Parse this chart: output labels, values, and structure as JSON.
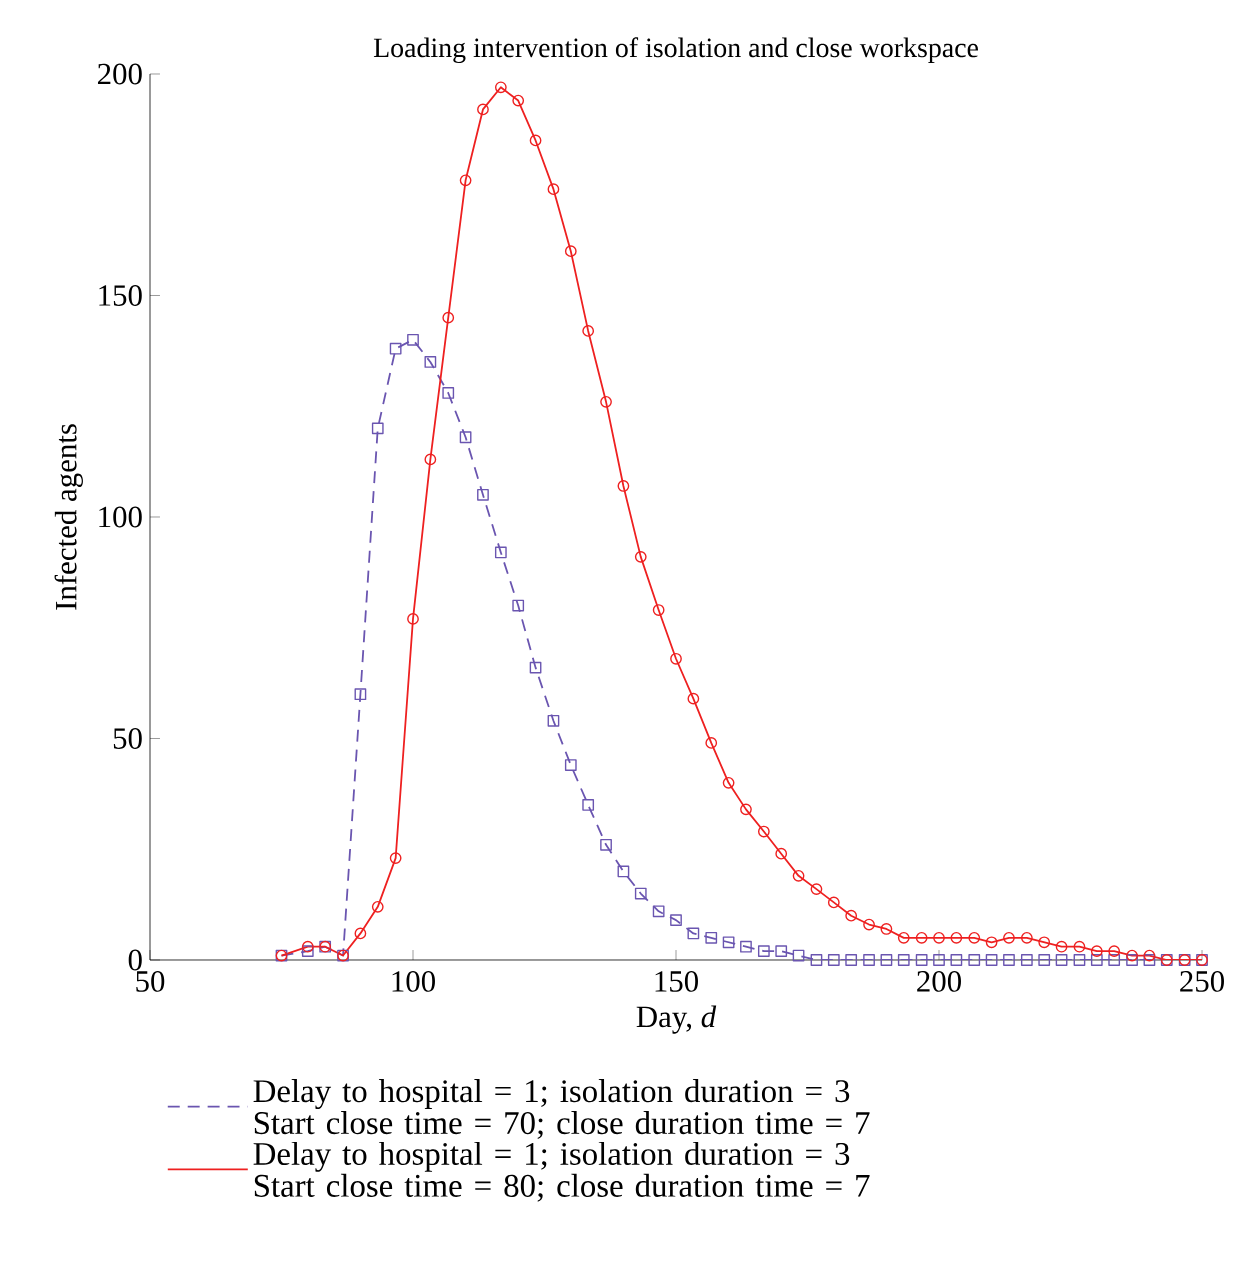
{
  "chart_data": {
    "type": "line",
    "title": "Loading intervention of isolation and close workspace",
    "xlabel": "Day, *d*",
    "ylabel": "Infected agents",
    "xlim": [
      50,
      250
    ],
    "ylim": [
      0,
      200
    ],
    "xticks": [
      50,
      100,
      150,
      200,
      250
    ],
    "yticks": [
      0,
      50,
      100,
      150,
      200
    ],
    "grid": false,
    "legend": "bottom",
    "x": [
      75,
      80,
      83.3,
      86.7,
      90,
      93.3,
      96.7,
      100,
      103.3,
      106.7,
      110,
      113.3,
      116.7,
      120,
      123.3,
      126.7,
      130,
      133.3,
      136.7,
      140,
      143.3,
      146.7,
      150,
      153.3,
      156.7,
      160,
      163.3,
      166.7,
      170,
      173.3,
      176.7,
      180,
      183.3,
      186.7,
      190,
      193.3,
      196.7,
      200,
      203.3,
      206.7,
      210,
      213.3,
      216.7,
      220,
      223.3,
      226.7,
      230,
      233.3,
      236.7,
      240,
      243.3,
      246.7,
      250
    ],
    "series": [
      {
        "name": "Delay to hospital = 1; isolation duration = 3 Start close time = 70; close duration time = 7",
        "color": "#6a55b0",
        "line_style": "dashed",
        "marker": "square",
        "values": [
          1,
          2,
          3,
          1,
          60,
          120,
          138,
          140,
          135,
          128,
          118,
          105,
          92,
          80,
          66,
          54,
          44,
          35,
          26,
          20,
          15,
          11,
          9,
          6,
          5,
          4,
          3,
          2,
          2,
          1,
          0,
          0,
          0,
          0,
          0,
          0,
          0,
          0,
          0,
          0,
          0,
          0,
          0,
          0,
          0,
          0,
          0,
          0,
          0,
          0,
          0,
          0,
          0
        ]
      },
      {
        "name": "Delay to hospital = 1; isolation duration = 3 Start close time = 80; close duration time = 7",
        "color": "#ee2020",
        "line_style": "solid",
        "marker": "circle",
        "values": [
          1,
          3,
          3,
          1,
          6,
          12,
          23,
          77,
          113,
          145,
          176,
          192,
          197,
          194,
          185,
          174,
          160,
          142,
          126,
          107,
          91,
          79,
          68,
          59,
          49,
          40,
          34,
          29,
          24,
          19,
          16,
          13,
          10,
          8,
          7,
          5,
          5,
          5,
          5,
          5,
          4,
          5,
          5,
          4,
          3,
          3,
          2,
          2,
          1,
          1,
          0,
          0,
          0
        ]
      }
    ]
  }
}
